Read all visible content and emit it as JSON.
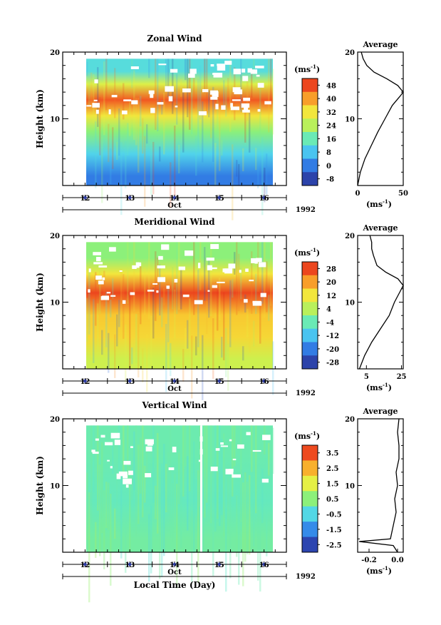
{
  "chart_data": [
    {
      "type": "heatmap",
      "title": "Zonal Wind",
      "ylabel": "Height (km)",
      "xlabel": "",
      "xticks": [
        "12",
        "13",
        "14",
        "15",
        "16"
      ],
      "month_label": "Oct",
      "year_label": "1992",
      "ylim": [
        0,
        20
      ],
      "yticks": [
        "20",
        "10"
      ],
      "colorbar": {
        "unit_label": "(ms",
        "unit_sup": "-1",
        "ticks": [
          "48",
          "40",
          "32",
          "24",
          "16",
          "8",
          "0",
          "-8"
        ],
        "range": [
          -12,
          52
        ]
      },
      "bands": [
        {
          "from_km": 0,
          "to_km": 3,
          "value": 0
        },
        {
          "from_km": 3,
          "to_km": 7,
          "value": 10
        },
        {
          "from_km": 7,
          "to_km": 10,
          "value": 20
        },
        {
          "from_km": 10,
          "to_km": 12,
          "value": 32
        },
        {
          "from_km": 12,
          "to_km": 15,
          "value": 46
        },
        {
          "from_km": 15,
          "to_km": 17,
          "value": 28
        },
        {
          "from_km": 17,
          "to_km": 19,
          "value": 12
        }
      ],
      "profile": {
        "title": "Average",
        "xlabel": "(ms",
        "xlabel_sup": "-1",
        "xticks": [
          "0",
          "50"
        ],
        "xlim": [
          0,
          50
        ],
        "ylim": [
          0,
          20
        ],
        "yticks": [
          "20",
          "10"
        ],
        "points": [
          [
            0,
            0
          ],
          [
            3,
            2
          ],
          [
            8,
            4
          ],
          [
            15,
            6
          ],
          [
            22,
            8
          ],
          [
            30,
            10
          ],
          [
            38,
            12
          ],
          [
            46,
            13.3
          ],
          [
            50,
            14
          ],
          [
            44,
            15
          ],
          [
            32,
            16
          ],
          [
            18,
            17
          ],
          [
            10,
            18
          ],
          [
            6,
            19
          ],
          [
            4,
            20
          ]
        ]
      }
    },
    {
      "type": "heatmap",
      "title": "Meridional Wind",
      "ylabel": "Height (km)",
      "xlabel": "",
      "xticks": [
        "12",
        "13",
        "14",
        "15",
        "16"
      ],
      "month_label": "Oct",
      "year_label": "1992",
      "ylim": [
        0,
        20
      ],
      "yticks": [
        "20",
        "10"
      ],
      "colorbar": {
        "unit_label": "(ms",
        "unit_sup": "-1",
        "ticks": [
          "28",
          "20",
          "12",
          "4",
          "-4",
          "-12",
          "-20",
          "-28"
        ],
        "range": [
          -32,
          32
        ]
      },
      "bands": [
        {
          "from_km": 0,
          "to_km": 3,
          "value": 6
        },
        {
          "from_km": 3,
          "to_km": 7,
          "value": 14
        },
        {
          "from_km": 7,
          "to_km": 10,
          "value": 16
        },
        {
          "from_km": 10,
          "to_km": 14,
          "value": 28
        },
        {
          "from_km": 14,
          "to_km": 16,
          "value": 12
        },
        {
          "from_km": 16,
          "to_km": 19,
          "value": 0
        }
      ],
      "profile": {
        "title": "Average",
        "xlabel": "(ms",
        "xlabel_sup": "-1",
        "xticks": [
          "5",
          "25"
        ],
        "xlim": [
          0,
          26
        ],
        "ylim": [
          0,
          20
        ],
        "yticks": [
          "20",
          "10"
        ],
        "points": [
          [
            1,
            0
          ],
          [
            4,
            2
          ],
          [
            8,
            4
          ],
          [
            13,
            6
          ],
          [
            18,
            8
          ],
          [
            21,
            10
          ],
          [
            24,
            11.5
          ],
          [
            26,
            12.5
          ],
          [
            23,
            13.5
          ],
          [
            16,
            14.5
          ],
          [
            11,
            15.5
          ],
          [
            9,
            17
          ],
          [
            8,
            18
          ],
          [
            8,
            19
          ],
          [
            7,
            20
          ]
        ]
      }
    },
    {
      "type": "heatmap",
      "title": "Vertical Wind",
      "ylabel": "Height (km)",
      "xlabel": "Local Time (Day)",
      "xticks": [
        "12",
        "13",
        "14",
        "15",
        "16"
      ],
      "month_label": "Oct",
      "year_label": "1992",
      "ylim": [
        0,
        20
      ],
      "yticks": [
        "20",
        "10"
      ],
      "colorbar": {
        "unit_label": "(ms",
        "unit_sup": "-1",
        "ticks": [
          "3.5",
          "2.5",
          "1.5",
          "0.5",
          "-0.5",
          "-1.5",
          "-2.5"
        ],
        "range": [
          -3,
          4
        ]
      },
      "bands": [
        {
          "from_km": 0,
          "to_km": 4,
          "value": 0.2
        },
        {
          "from_km": 4,
          "to_km": 12,
          "value": 0
        },
        {
          "from_km": 12,
          "to_km": 19,
          "value": 0.1
        }
      ],
      "profile": {
        "title": "Average",
        "xlabel": "(ms",
        "xlabel_sup": "-1",
        "xticks": [
          "-0.2",
          "0.0"
        ],
        "xlim": [
          -0.28,
          0.04
        ],
        "ylim": [
          0,
          20
        ],
        "yticks": [
          "20",
          "10"
        ],
        "points": [
          [
            0,
            0
          ],
          [
            -0.03,
            1
          ],
          [
            -0.27,
            1.6
          ],
          [
            -0.05,
            2
          ],
          [
            -0.03,
            4
          ],
          [
            -0.01,
            6
          ],
          [
            -0.02,
            8
          ],
          [
            0.0,
            10
          ],
          [
            -0.01,
            12
          ],
          [
            0.01,
            14
          ],
          [
            0.01,
            16
          ],
          [
            0.0,
            18
          ],
          [
            0.01,
            20
          ]
        ]
      }
    }
  ]
}
